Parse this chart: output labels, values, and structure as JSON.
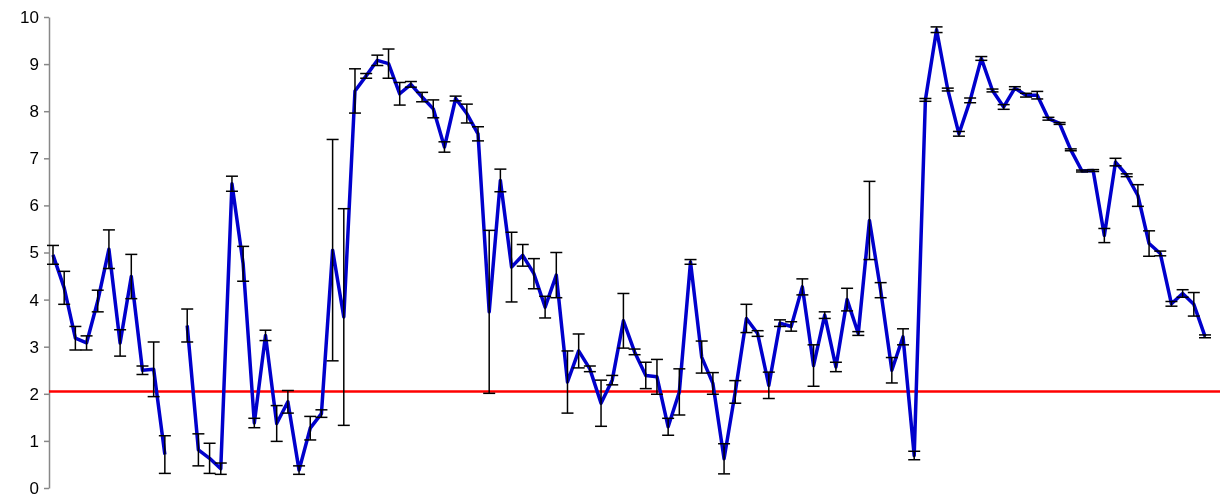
{
  "chart_data": {
    "type": "line",
    "categories": [
      null,
      null,
      null,
      null,
      null,
      null,
      null,
      null,
      null,
      null,
      null,
      null,
      null,
      null,
      null,
      null,
      null,
      null,
      null,
      null,
      null,
      null,
      null,
      null,
      null,
      null,
      null,
      null,
      null,
      null,
      null,
      null,
      null,
      null,
      null,
      null,
      null,
      null,
      null,
      null,
      null,
      null,
      null,
      null,
      null,
      null,
      null,
      null,
      null,
      null,
      null,
      null,
      null,
      null,
      null,
      null,
      null,
      null,
      null,
      null,
      null,
      null,
      null,
      null,
      null,
      null,
      null,
      null,
      null,
      null,
      null,
      null,
      null,
      null,
      null,
      null,
      null,
      null,
      null,
      null,
      null,
      null,
      null,
      null,
      null,
      null,
      null,
      null,
      null,
      null,
      null,
      null,
      null,
      null,
      null,
      null,
      null,
      null,
      null,
      null,
      null,
      null,
      null,
      null
    ],
    "series": [
      {
        "color": "#0000cc",
        "values": [
          4.95,
          4.25,
          3.18,
          3.08,
          3.97,
          5.07,
          3.08,
          4.49,
          2.5,
          2.52,
          0.71,
          null,
          null,
          null,
          null,
          null,
          null,
          null,
          null,
          null,
          null,
          null,
          null,
          null,
          null,
          null,
          null,
          null,
          null,
          null,
          null,
          null,
          null,
          null,
          null,
          null,
          null,
          null,
          null,
          null,
          null,
          null,
          null,
          null,
          null,
          null,
          null,
          null,
          null,
          null,
          null,
          null,
          null,
          null,
          null,
          null,
          null,
          null,
          null,
          null,
          null,
          null,
          null,
          null,
          null,
          null,
          null,
          null,
          null,
          null,
          null,
          null,
          null,
          null,
          null,
          null,
          null,
          null,
          null,
          null,
          null,
          null,
          null,
          null,
          null,
          null,
          null,
          null,
          null,
          null,
          null,
          null,
          null,
          null,
          null,
          null,
          null,
          null,
          null,
          null,
          null,
          null,
          null,
          null
        ],
        "errors": [
          0.2,
          0.35,
          0.25,
          0.15,
          0.23,
          0.41,
          0.28,
          0.47,
          0.09,
          0.58,
          0.4,
          null,
          null,
          null,
          null,
          null,
          null,
          null,
          null,
          null,
          null,
          null,
          null,
          null,
          null,
          null,
          null,
          null,
          null,
          null,
          null,
          null,
          null,
          null,
          null,
          null,
          null,
          null,
          null,
          null,
          null,
          null,
          null,
          null,
          null,
          null,
          null,
          null,
          null,
          null,
          null,
          null,
          null,
          null,
          null,
          null,
          null,
          null,
          null,
          null,
          null,
          null,
          null,
          null,
          null,
          null,
          null,
          null,
          null,
          null,
          null,
          null,
          null,
          null,
          null,
          null,
          null,
          null,
          null,
          null,
          null,
          null,
          null,
          null,
          null,
          null,
          null,
          null,
          null,
          null,
          null,
          null,
          null,
          null,
          null,
          null,
          null,
          null,
          null,
          null,
          null,
          null,
          null,
          null
        ]
      },
      {
        "color": "#0000cc",
        "values": [
          null,
          null,
          null,
          null,
          null,
          null,
          null,
          null,
          null,
          null,
          null,
          null,
          3.45,
          0.81,
          0.63,
          0.41,
          6.46,
          4.76,
          1.38,
          3.24,
          1.37,
          1.83,
          0.38,
          1.27,
          1.58,
          5.05,
          3.63,
          8.43,
          8.75,
          9.08,
          9.01,
          8.37,
          8.57,
          8.3,
          8.05,
          7.24,
          8.27,
          7.95,
          7.52,
          3.74,
          6.53,
          4.69,
          4.94,
          4.55,
          3.84,
          4.52,
          2.25,
          2.91,
          2.53,
          1.8,
          2.29,
          3.55,
          2.89,
          2.39,
          2.36,
          1.3,
          2.04,
          4.8,
          2.78,
          2.22,
          0.62,
          2.04,
          3.6,
          3.28,
          2.18,
          3.5,
          3.43,
          4.27,
          2.6,
          3.67,
          2.57,
          4.0,
          3.28,
          5.68,
          4.2,
          2.5,
          3.21,
          0.69,
          8.24,
          9.73,
          8.46,
          7.52,
          8.23,
          9.12,
          8.44,
          8.09,
          8.49,
          8.34,
          8.34,
          7.84,
          7.74,
          7.18,
          6.73,
          6.74,
          5.36,
          6.92,
          6.64,
          6.21,
          5.19,
          4.98,
          3.91,
          4.13,
          3.9,
          3.22
        ],
        "errors": [
          null,
          null,
          null,
          null,
          null,
          null,
          null,
          null,
          null,
          null,
          null,
          null,
          0.35,
          0.34,
          0.32,
          0.12,
          0.16,
          0.37,
          0.1,
          0.11,
          0.38,
          0.24,
          0.09,
          0.25,
          0.08,
          2.35,
          2.3,
          0.47,
          0.05,
          0.11,
          0.31,
          0.24,
          0.06,
          0.1,
          0.19,
          0.11,
          0.05,
          0.2,
          0.15,
          1.73,
          0.24,
          0.74,
          0.23,
          0.32,
          0.23,
          0.48,
          0.66,
          0.36,
          0.06,
          0.49,
          0.1,
          0.58,
          0.06,
          0.28,
          0.37,
          0.18,
          0.49,
          0.05,
          0.34,
          0.23,
          0.32,
          0.24,
          0.3,
          0.06,
          0.28,
          0.07,
          0.1,
          0.17,
          0.44,
          0.07,
          0.1,
          0.24,
          0.04,
          0.83,
          0.16,
          0.27,
          0.17,
          0.09,
          0.03,
          0.06,
          0.03,
          0.05,
          0.05,
          0.04,
          0.03,
          0.05,
          0.03,
          0.04,
          0.08,
          0.03,
          0.02,
          0.02,
          0.02,
          0.02,
          0.15,
          0.08,
          0.03,
          0.23,
          0.27,
          0.05,
          0.05,
          0.08,
          0.25,
          0.03
        ]
      }
    ],
    "ylim": [
      0,
      10
    ],
    "yticks": [
      0,
      1,
      2,
      3,
      4,
      5,
      6,
      7,
      8,
      9,
      10
    ],
    "tick_labels": "y",
    "grid": false,
    "marker": "none",
    "line_style": "solid",
    "ref_lines": [
      {
        "axis": "y",
        "value": 2.05,
        "color": "#ff0000",
        "line_style": "solid"
      }
    ]
  }
}
